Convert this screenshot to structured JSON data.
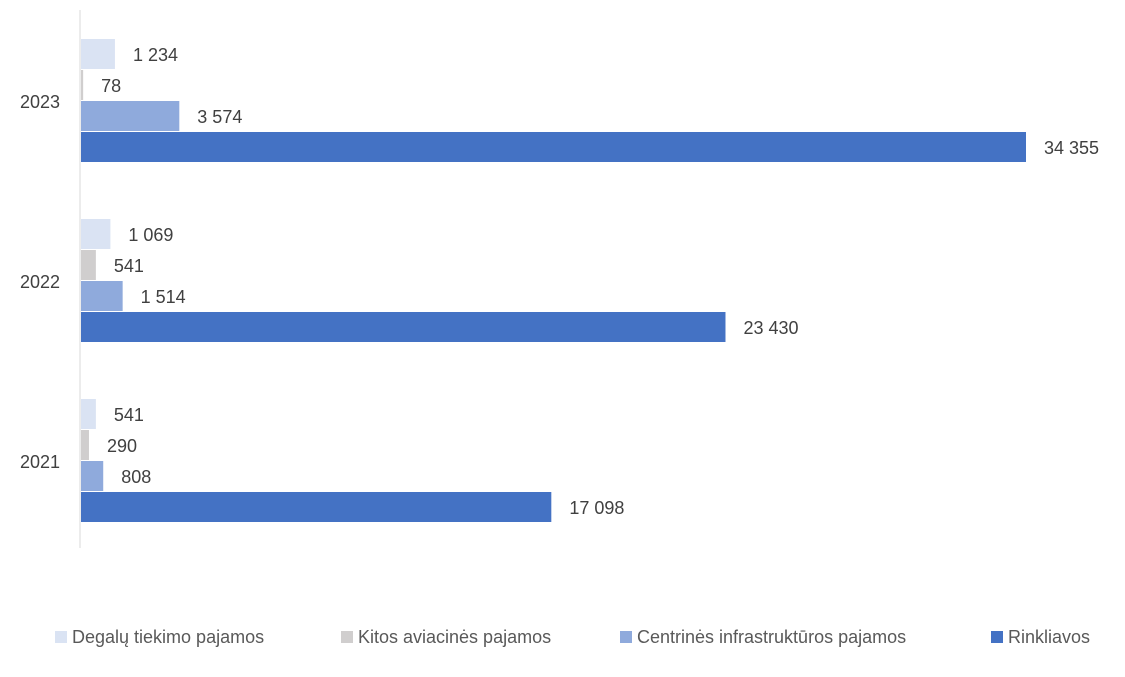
{
  "chart_data": {
    "type": "bar",
    "orientation": "horizontal",
    "categories": [
      "2023",
      "2022",
      "2021"
    ],
    "series": [
      {
        "name": "Degalų tiekimo pajamos",
        "color": "#dae3f3",
        "values": [
          1234,
          1069,
          541
        ],
        "labels": [
          "1 234",
          "1 069",
          "541"
        ]
      },
      {
        "name": "Kitos aviacinės pajamos",
        "color": "#d0cece",
        "values": [
          78,
          541,
          290
        ],
        "labels": [
          "78",
          "541",
          "290"
        ]
      },
      {
        "name": "Centrinės infrastruktūros pajamos",
        "color": "#8faadc",
        "values": [
          3574,
          1514,
          808
        ],
        "labels": [
          "3 574",
          "1 514",
          "808"
        ]
      },
      {
        "name": "Rinkliavos",
        "color": "#4472c4",
        "values": [
          34355,
          23430,
          17098
        ],
        "labels": [
          "34 355",
          "23 430",
          "17 098"
        ]
      }
    ],
    "xlim": [
      0,
      34355
    ],
    "grid": false,
    "legend_position": "bottom",
    "data_labels": true
  }
}
